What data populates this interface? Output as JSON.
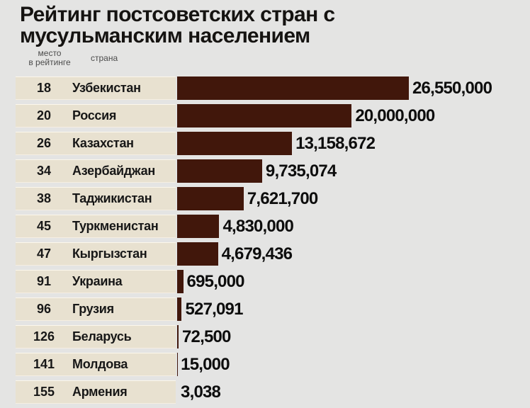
{
  "page": {
    "background": "#e4e4e3"
  },
  "chart_data": {
    "type": "bar",
    "orientation": "horizontal",
    "title": "Рейтинг постсоветских стран с мусульманским населением",
    "title_lines": [
      "Рейтинг постсоветских стран с",
      "мусульманским населением"
    ],
    "column_headers": {
      "rank_line1": "место",
      "rank_line2": "в рейтинге",
      "country": "страна"
    },
    "xlim": [
      0,
      26550000
    ],
    "grid": false,
    "legend": false,
    "colors": {
      "bar": "#41170b",
      "row_label_bg": "#e8e1d0",
      "page_bg": "#e4e4e3",
      "value_text": "#0d0d0d",
      "title_text": "#151311"
    },
    "rows": [
      {
        "rank": "18",
        "country": "Узбекистан",
        "value": 26550000,
        "value_label": "26,550,000"
      },
      {
        "rank": "20",
        "country": "Россия",
        "value": 20000000,
        "value_label": "20,000,000"
      },
      {
        "rank": "26",
        "country": "Казахстан",
        "value": 13158672,
        "value_label": "13,158,672"
      },
      {
        "rank": "34",
        "country": "Азербайджан",
        "value": 9735074,
        "value_label": "9,735,074"
      },
      {
        "rank": "38",
        "country": "Таджикистан",
        "value": 7621700,
        "value_label": "7,621,700"
      },
      {
        "rank": "45",
        "country": "Туркменистан",
        "value": 4830000,
        "value_label": "4,830,000"
      },
      {
        "rank": "47",
        "country": "Кыргызстан",
        "value": 4679436,
        "value_label": "4,679,436"
      },
      {
        "rank": "91",
        "country": "Украина",
        "value": 695000,
        "value_label": "695,000"
      },
      {
        "rank": "96",
        "country": "Грузия",
        "value": 527091,
        "value_label": "527,091"
      },
      {
        "rank": "126",
        "country": "Беларусь",
        "value": 72500,
        "value_label": "72,500"
      },
      {
        "rank": "141",
        "country": "Молдова",
        "value": 15000,
        "value_label": "15,000"
      },
      {
        "rank": "155",
        "country": "Армения",
        "value": 3038,
        "value_label": "3,038"
      }
    ]
  }
}
